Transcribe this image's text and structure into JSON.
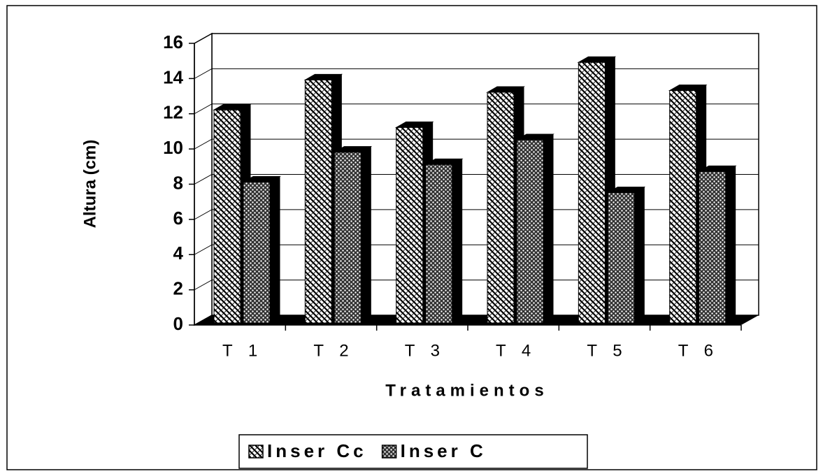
{
  "chart_data": {
    "type": "bar3d",
    "x_label": "Tratamientos",
    "y_label": "Altura (cm)",
    "categories": [
      "T 1",
      "T 2",
      "T 3",
      "T 4",
      "T 5",
      "T 6"
    ],
    "series": [
      {
        "name": "Inser Cc",
        "color": "#000000",
        "values": [
          12.1,
          13.8,
          11.1,
          13.1,
          14.8,
          13.2
        ]
      },
      {
        "name": "Inser C",
        "color": "#000000",
        "values": [
          8.0,
          9.7,
          9.0,
          10.4,
          7.4,
          8.6
        ]
      }
    ],
    "ylim": [
      0,
      16
    ],
    "yticks": [
      0,
      2,
      4,
      6,
      8,
      10,
      12,
      14,
      16
    ],
    "grid": true,
    "legend": "bottom"
  }
}
